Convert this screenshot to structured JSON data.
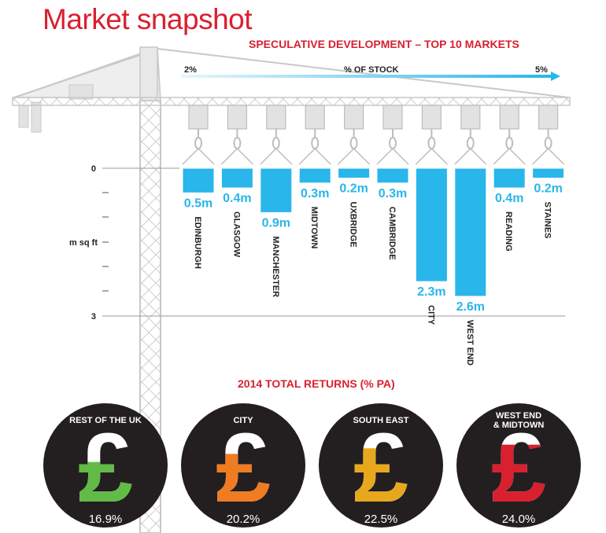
{
  "page_title": "Market snapshot",
  "chart_data": [
    {
      "type": "bar",
      "title": "SPECULATIVE DEVELOPMENT – TOP 10 MARKETS",
      "top_axis": {
        "label": "% OF STOCK",
        "min_label": "2%",
        "max_label": "5%"
      },
      "ylabel": "m sq ft",
      "y_tick_labels": [
        "0",
        "3"
      ],
      "ylim": [
        0,
        3
      ],
      "categories": [
        "EDINBURGH",
        "GLASGOW",
        "MANCHESTER",
        "MIDTOWN",
        "UXBRIDGE",
        "CAMBRIDGE",
        "CITY",
        "WEST END",
        "READING",
        "STAINES"
      ],
      "values": [
        0.5,
        0.4,
        0.9,
        0.3,
        0.2,
        0.3,
        2.3,
        2.6,
        0.4,
        0.2
      ],
      "value_labels": [
        "0.5m",
        "0.4m",
        "0.9m",
        "0.3m",
        "0.2m",
        "0.3m",
        "2.3m",
        "2.6m",
        "0.4m",
        "0.2m"
      ],
      "bar_color": "#29b6ea"
    },
    {
      "type": "pie",
      "title": "2014 TOTAL RETURNS (% PA)",
      "categories": [
        "REST OF THE UK",
        "CITY",
        "SOUTH EAST",
        "WEST END & MIDTOWN"
      ],
      "category_lines": [
        [
          "REST OF THE UK"
        ],
        [
          "CITY"
        ],
        [
          "SOUTH EAST"
        ],
        [
          "WEST END",
          "& MIDTOWN"
        ]
      ],
      "values": [
        16.9,
        20.2,
        22.5,
        24.0
      ],
      "value_labels": [
        "16.9%",
        "20.2%",
        "22.5%",
        "24.0%"
      ],
      "colors": [
        "#62bb46",
        "#f07c22",
        "#e8a81e",
        "#d8202f"
      ]
    }
  ],
  "colors": {
    "title": "#d8202f",
    "crane": "#e4e4e4",
    "crane_line": "#c8c8c8",
    "disc": "#231f20",
    "axis_arrow": "#29b6ea"
  }
}
